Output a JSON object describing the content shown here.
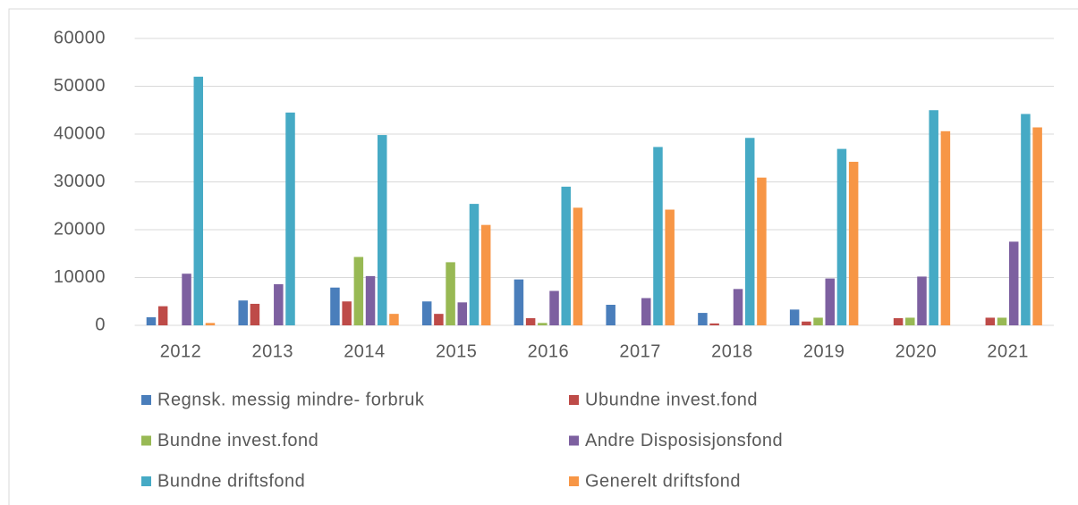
{
  "chart_data": {
    "type": "bar",
    "categories": [
      "2012",
      "2013",
      "2014",
      "2015",
      "2016",
      "2017",
      "2018",
      "2019",
      "2020",
      "2021"
    ],
    "series": [
      {
        "name": "Regnsk. messig mindre- forbruk",
        "color": "#4a7ebb",
        "values": [
          1700,
          5200,
          7900,
          5000,
          9600,
          4300,
          2600,
          3300,
          0,
          0
        ]
      },
      {
        "name": "Ubundne invest.fond",
        "color": "#be4b48",
        "values": [
          4000,
          4500,
          5000,
          2400,
          1500,
          0,
          400,
          800,
          1500,
          1600
        ]
      },
      {
        "name": "Bundne invest.fond",
        "color": "#98b954",
        "values": [
          0,
          0,
          14300,
          13200,
          500,
          0,
          0,
          1600,
          1600,
          1600
        ]
      },
      {
        "name": "Andre Disposisjonsfond",
        "color": "#7d60a0",
        "values": [
          10800,
          8600,
          10300,
          4800,
          7200,
          5700,
          7600,
          9800,
          10200,
          17500
        ]
      },
      {
        "name": "Bundne driftsfond",
        "color": "#46aac5",
        "values": [
          52000,
          44500,
          39800,
          25400,
          29000,
          37300,
          39200,
          36900,
          45000,
          44200
        ]
      },
      {
        "name": "Generelt driftsfond",
        "color": "#f79646",
        "values": [
          500,
          0,
          2400,
          21000,
          24600,
          24200,
          30900,
          34200,
          40600,
          41400
        ]
      }
    ],
    "ylim": [
      0,
      60000
    ],
    "yticks": [
      0,
      10000,
      20000,
      30000,
      40000,
      50000,
      60000
    ],
    "grid": true
  }
}
